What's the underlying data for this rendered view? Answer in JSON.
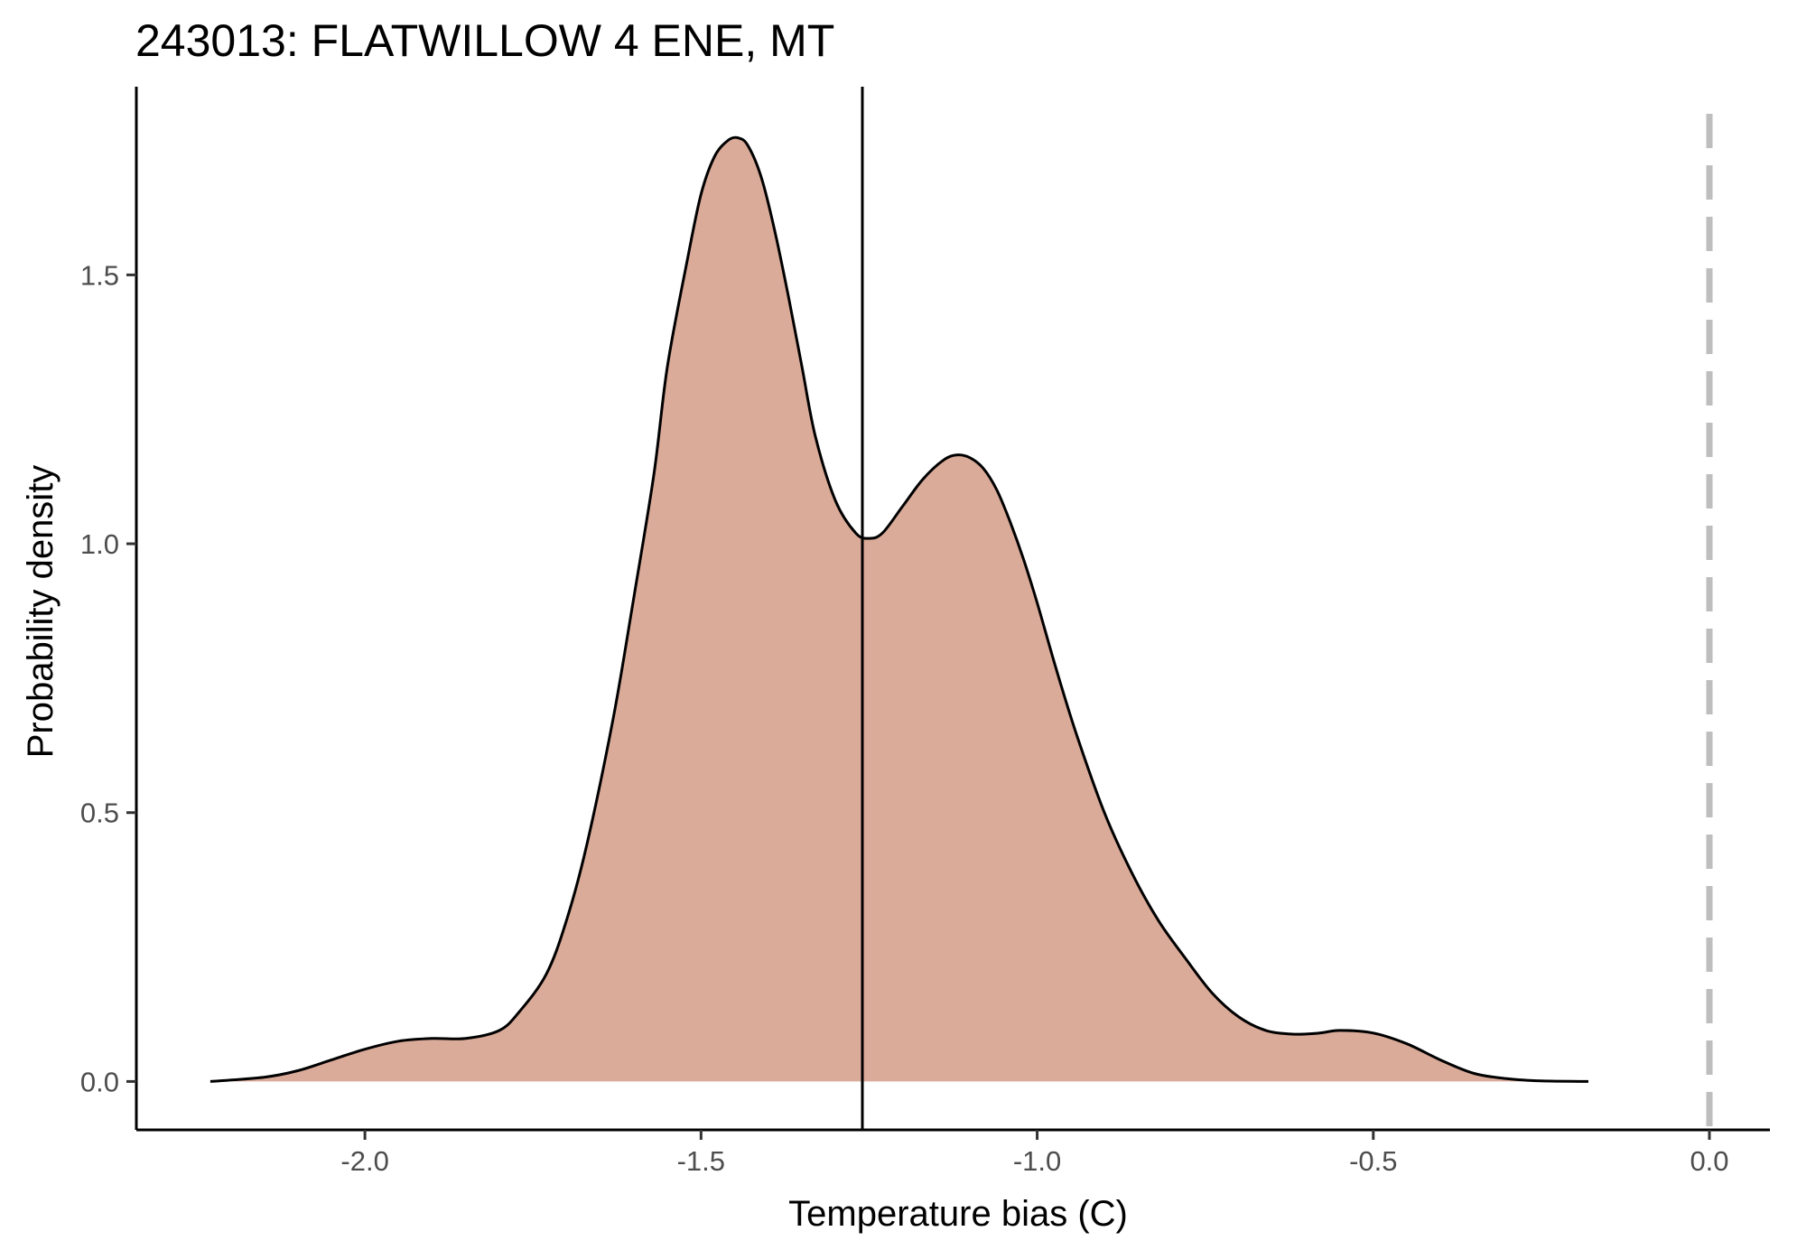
{
  "chart_data": {
    "type": "area",
    "title": "243013: FLATWILLOW 4 ENE, MT",
    "xlabel": "Temperature bias (C)",
    "ylabel": "Probability density",
    "xlim": [
      -2.34,
      0.09
    ],
    "ylim": [
      -0.09,
      1.85
    ],
    "x_ticks": [
      -2.0,
      -1.5,
      -1.0,
      -0.5,
      0.0
    ],
    "x_tick_labels": [
      "-2.0",
      "-1.5",
      "-1.0",
      "-0.5",
      "0.0"
    ],
    "y_ticks": [
      0.0,
      0.5,
      1.0,
      1.5
    ],
    "y_tick_labels": [
      "0.0",
      "0.5",
      "1.0",
      "1.5"
    ],
    "grid": false,
    "fill_color": "#dbab9a",
    "line_color": "#000000",
    "mean_line": {
      "x": -1.26,
      "color": "#000000"
    },
    "reference_line": {
      "x": 0.0,
      "color": "#bebebe",
      "style": "dashed"
    },
    "series": [
      {
        "x": [
          -2.23,
          -2.15,
          -2.1,
          -2.05,
          -2.0,
          -1.95,
          -1.9,
          -1.85,
          -1.8,
          -1.77,
          -1.73,
          -1.7,
          -1.67,
          -1.63,
          -1.6,
          -1.57,
          -1.55,
          -1.52,
          -1.5,
          -1.48,
          -1.46,
          -1.445,
          -1.43,
          -1.41,
          -1.39,
          -1.37,
          -1.35,
          -1.33,
          -1.3,
          -1.27,
          -1.25,
          -1.23,
          -1.2,
          -1.17,
          -1.14,
          -1.12,
          -1.1,
          -1.08,
          -1.06,
          -1.04,
          -1.02,
          -1.0,
          -0.97,
          -0.94,
          -0.9,
          -0.86,
          -0.82,
          -0.78,
          -0.74,
          -0.7,
          -0.66,
          -0.62,
          -0.58,
          -0.55,
          -0.5,
          -0.45,
          -0.4,
          -0.35,
          -0.3,
          -0.25,
          -0.18
        ],
        "y": [
          0.0,
          0.008,
          0.02,
          0.04,
          0.06,
          0.075,
          0.08,
          0.08,
          0.095,
          0.13,
          0.2,
          0.3,
          0.44,
          0.68,
          0.9,
          1.13,
          1.33,
          1.53,
          1.65,
          1.72,
          1.75,
          1.755,
          1.74,
          1.68,
          1.58,
          1.46,
          1.33,
          1.2,
          1.08,
          1.02,
          1.01,
          1.02,
          1.07,
          1.12,
          1.155,
          1.165,
          1.16,
          1.14,
          1.1,
          1.04,
          0.97,
          0.89,
          0.76,
          0.64,
          0.5,
          0.39,
          0.3,
          0.23,
          0.165,
          0.12,
          0.095,
          0.088,
          0.09,
          0.095,
          0.09,
          0.07,
          0.04,
          0.015,
          0.005,
          0.001,
          0.0
        ]
      }
    ]
  }
}
